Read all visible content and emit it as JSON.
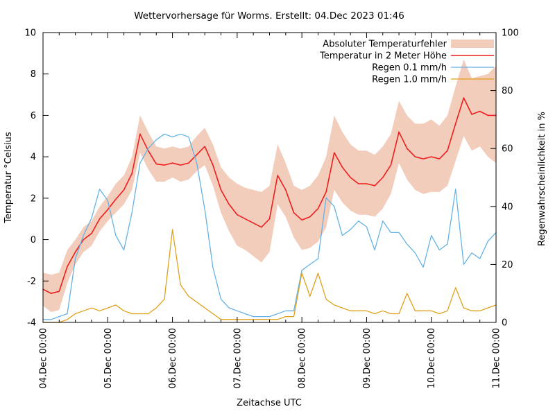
{
  "title": "Wettervorhersage für Worms. Erstellt: 04.Dec 2023 01:46",
  "chart_data": {
    "type": "line",
    "title": "Wettervorhersage für Worms. Erstellt: 04.Dec 2023 01:46",
    "grid": "off",
    "legend_position": "top-right-inside",
    "x_axis": {
      "label": "Zeitachse UTC",
      "range_hours": [
        0,
        168
      ],
      "major_tick_labels": [
        "04.Dec 00:00",
        "05.Dec 00:00",
        "06.Dec 00:00",
        "07.Dec 00:00",
        "08.Dec 00:00",
        "09.Dec 00:00",
        "10.Dec 00:00",
        "11.Dec 00:00"
      ],
      "minor_tick_hours": 6
    },
    "y_left": {
      "label": "Temperatur °Celsius",
      "min": -4,
      "max": 10,
      "ticks": [
        -4,
        -2,
        0,
        2,
        4,
        6,
        8,
        10
      ]
    },
    "y_right": {
      "label": "Regenwahrscheinlichkeit in %",
      "min": 0,
      "max": 100,
      "ticks": [
        0,
        20,
        40,
        60,
        80,
        100
      ]
    },
    "sample_step_hours": 3,
    "series": [
      {
        "name": "Absoluter Temperaturfehler",
        "type": "band",
        "axis": "left",
        "color": "#f3cdbc",
        "upper": [
          -1.6,
          -1.7,
          -1.6,
          -0.5,
          0.0,
          0.6,
          0.9,
          1.6,
          2.1,
          2.7,
          3.1,
          4.0,
          6.0,
          5.2,
          4.5,
          4.4,
          4.5,
          4.4,
          4.5,
          5.0,
          5.4,
          4.6,
          3.5,
          3.0,
          2.7,
          2.5,
          2.4,
          2.3,
          2.6,
          4.6,
          3.7,
          2.6,
          2.4,
          2.6,
          3.1,
          4.0,
          6.0,
          5.2,
          4.6,
          4.3,
          4.3,
          4.1,
          4.5,
          5.1,
          6.7,
          6.0,
          5.6,
          5.6,
          5.8,
          5.5,
          6.0,
          7.4,
          8.7,
          7.8,
          7.9,
          8.0,
          8.4
        ],
        "lower": [
          -3.2,
          -3.5,
          -3.4,
          -2.1,
          -1.2,
          -0.6,
          -0.3,
          0.4,
          0.9,
          1.3,
          1.7,
          2.4,
          4.2,
          3.4,
          2.8,
          2.8,
          3.0,
          2.8,
          2.9,
          3.3,
          3.6,
          2.6,
          1.3,
          0.4,
          -0.3,
          -0.5,
          -0.8,
          -1.1,
          -0.6,
          1.7,
          1.1,
          0.1,
          -0.5,
          -0.4,
          -0.1,
          0.6,
          2.4,
          1.8,
          1.4,
          1.2,
          1.2,
          1.1,
          1.5,
          2.2,
          3.7,
          2.9,
          2.4,
          2.2,
          2.3,
          2.3,
          2.6,
          3.8,
          5.0,
          4.3,
          4.5,
          4.0,
          3.7
        ]
      },
      {
        "name": "Temperatur in 2 Meter Höhe",
        "type": "line",
        "axis": "left",
        "color": "#ee1c1c",
        "width": 1.6,
        "values": [
          -2.4,
          -2.6,
          -2.5,
          -1.3,
          -0.6,
          0.0,
          0.3,
          1.0,
          1.45,
          1.95,
          2.4,
          3.2,
          5.1,
          4.3,
          3.65,
          3.6,
          3.7,
          3.6,
          3.7,
          4.1,
          4.5,
          3.6,
          2.4,
          1.7,
          1.2,
          1.0,
          0.8,
          0.6,
          1.0,
          3.1,
          2.4,
          1.3,
          0.95,
          1.1,
          1.5,
          2.3,
          4.2,
          3.5,
          3.0,
          2.7,
          2.7,
          2.6,
          3.0,
          3.6,
          5.2,
          4.4,
          4.0,
          3.9,
          4.0,
          3.9,
          4.3,
          5.6,
          6.85,
          6.05,
          6.2,
          6.0,
          6.0
        ]
      },
      {
        "name": "Regen 0.1 mm/h",
        "type": "line",
        "axis": "right",
        "color": "#64b2e6",
        "width": 1.3,
        "values": [
          1,
          1,
          2,
          3,
          22,
          30,
          36,
          46,
          42,
          30,
          25,
          38,
          55,
          60,
          63,
          65,
          64,
          65,
          64,
          55,
          39,
          19,
          8,
          5,
          4,
          3,
          2,
          2,
          2,
          3,
          4,
          4,
          18,
          20,
          22,
          43,
          40,
          30,
          32,
          35,
          33,
          25,
          35,
          31,
          31,
          27,
          24,
          19,
          30,
          25,
          27,
          46,
          20,
          24,
          22,
          28,
          31
        ]
      },
      {
        "name": "Regen 1.0 mm/h",
        "type": "line",
        "axis": "right",
        "color": "#e0a018",
        "width": 1.3,
        "values": [
          0,
          0,
          0,
          1,
          3,
          4,
          5,
          4,
          5,
          6,
          4,
          3,
          3,
          3,
          5,
          8,
          32,
          13,
          9,
          7,
          5,
          3,
          1,
          1,
          1,
          1,
          1,
          1,
          1,
          1,
          2,
          2,
          17,
          9,
          17,
          8,
          6,
          5,
          4,
          4,
          4,
          3,
          4,
          3,
          3,
          10,
          4,
          4,
          4,
          3,
          4,
          12,
          5,
          4,
          4,
          5,
          6
        ]
      }
    ]
  }
}
